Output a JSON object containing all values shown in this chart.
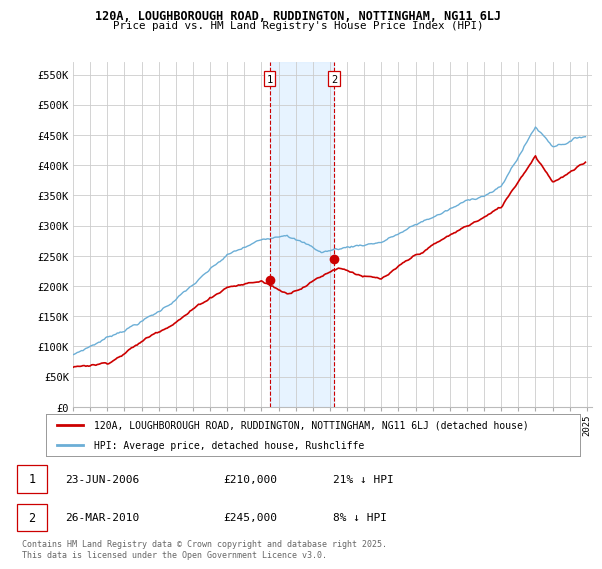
{
  "title_line1": "120A, LOUGHBOROUGH ROAD, RUDDINGTON, NOTTINGHAM, NG11 6LJ",
  "title_line2": "Price paid vs. HM Land Registry's House Price Index (HPI)",
  "ylim": [
    0,
    570000
  ],
  "yticks": [
    0,
    50000,
    100000,
    150000,
    200000,
    250000,
    300000,
    350000,
    400000,
    450000,
    500000,
    550000
  ],
  "ytick_labels": [
    "£0",
    "£50K",
    "£100K",
    "£150K",
    "£200K",
    "£250K",
    "£300K",
    "£350K",
    "£400K",
    "£450K",
    "£500K",
    "£550K"
  ],
  "hpi_color": "#6baed6",
  "sale_color": "#cc0000",
  "sale1_date": 2006.48,
  "sale1_price": 210000,
  "sale2_date": 2010.24,
  "sale2_price": 245000,
  "vline_color": "#cc0000",
  "shade_color": "#ddeeff",
  "legend_label1": "120A, LOUGHBOROUGH ROAD, RUDDINGTON, NOTTINGHAM, NG11 6LJ (detached house)",
  "legend_label2": "HPI: Average price, detached house, Rushcliffe",
  "table_row1": [
    "1",
    "23-JUN-2006",
    "£210,000",
    "21% ↓ HPI"
  ],
  "table_row2": [
    "2",
    "26-MAR-2010",
    "£245,000",
    "8% ↓ HPI"
  ],
  "footnote": "Contains HM Land Registry data © Crown copyright and database right 2025.\nThis data is licensed under the Open Government Licence v3.0.",
  "bg_color": "#ffffff",
  "grid_color": "#cccccc"
}
